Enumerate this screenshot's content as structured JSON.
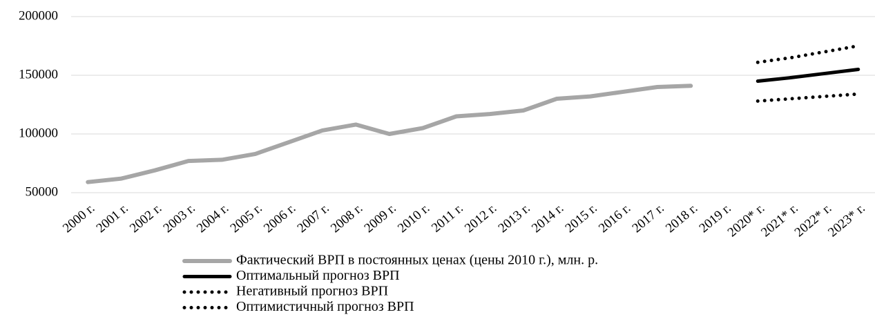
{
  "chart_data": {
    "type": "line",
    "categories": [
      "2000 г.",
      "2001 г.",
      "2002 г.",
      "2003 г.",
      "2004 г.",
      "2005 г.",
      "2006 г.",
      "2007 г.",
      "2008 г.",
      "2009 г.",
      "2010 г.",
      "2011 г.",
      "2012 г.",
      "2013 г.",
      "2014 г.",
      "2015 г.",
      "2016 г.",
      "2017 г.",
      "2018 г.",
      "2019 г.",
      "2020* г.",
      "2021* г.",
      "2022* г.",
      "2023* г."
    ],
    "series": [
      {
        "name": "Фактический ВРП в постоянных ценах (цены 2010 г.), млн. р.",
        "color": "#a6a6a6",
        "style": "solid",
        "values": [
          59000,
          62000,
          69000,
          77000,
          78000,
          83000,
          93000,
          103000,
          108000,
          100000,
          105000,
          115000,
          117000,
          120000,
          130000,
          132000,
          136000,
          140000,
          141000,
          null,
          null,
          null,
          null,
          null
        ]
      },
      {
        "name": "Оптимальный прогноз ВРП",
        "color": "#000000",
        "style": "solid",
        "values": [
          null,
          null,
          null,
          null,
          null,
          null,
          null,
          null,
          null,
          null,
          null,
          null,
          null,
          null,
          null,
          null,
          null,
          null,
          null,
          null,
          145000,
          148000,
          151500,
          155000
        ]
      },
      {
        "name": "Негативный прогноз ВРП",
        "color": "#000000",
        "style": "dotted",
        "values": [
          null,
          null,
          null,
          null,
          null,
          null,
          null,
          null,
          null,
          null,
          null,
          null,
          null,
          null,
          null,
          null,
          null,
          null,
          null,
          null,
          128000,
          130000,
          132000,
          134000
        ]
      },
      {
        "name": "Оптимистичный прогноз ВРП",
        "color": "#000000",
        "style": "dotted",
        "values": [
          null,
          null,
          null,
          null,
          null,
          null,
          null,
          null,
          null,
          null,
          null,
          null,
          null,
          null,
          null,
          null,
          null,
          null,
          null,
          null,
          161000,
          165000,
          170000,
          175000
        ]
      }
    ],
    "ylim": [
      50000,
      200000
    ],
    "yticks": [
      50000,
      100000,
      150000,
      200000
    ],
    "grid": true,
    "legend": "bottom"
  }
}
